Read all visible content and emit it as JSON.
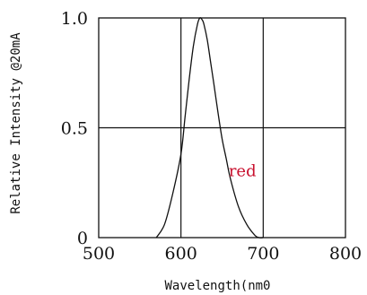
{
  "chart_data": {
    "type": "line",
    "xlabel": "Wavelength(nm0",
    "ylabel": "Relative Intensity @20mA",
    "xlim": [
      500,
      800
    ],
    "ylim": [
      0,
      1
    ],
    "x_ticks": [
      "500",
      "600",
      "700",
      "800"
    ],
    "y_ticks": [
      "0",
      "0.5",
      "1.0"
    ],
    "grid": true,
    "annotation": "red",
    "colors": {
      "line": "#111111",
      "grid": "#111111",
      "annotation": "#c8102e"
    },
    "series": [
      {
        "x": [
          570,
          580,
          590,
          600,
          605,
          610,
          615,
          620,
          623,
          626,
          628,
          632,
          636,
          640,
          645,
          650,
          655,
          660,
          670,
          680,
          690,
          695,
          700
        ],
        "y": [
          0.0,
          0.06,
          0.2,
          0.38,
          0.55,
          0.72,
          0.87,
          0.97,
          1.0,
          0.99,
          0.97,
          0.9,
          0.8,
          0.7,
          0.57,
          0.45,
          0.36,
          0.27,
          0.14,
          0.06,
          0.01,
          0.0,
          0.0
        ]
      }
    ]
  }
}
